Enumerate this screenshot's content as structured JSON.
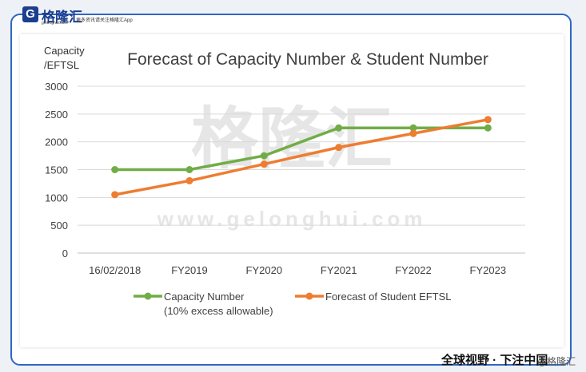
{
  "brand": {
    "logo_letter": "G",
    "name": "格隆汇",
    "domain": "gelonghui.com",
    "slogan": "更多资讯请关注格隆汇App",
    "footer_text": "全球视野 · 下注中国",
    "footer_logo": "@格隆汇",
    "watermark_name": "格隆汇",
    "watermark_url": "www.gelonghui.com"
  },
  "chart_data": {
    "type": "line",
    "title": "Forecast of Capacity Number & Student Number",
    "ylabel_line1": "Capacity",
    "ylabel_line2": "/EFTSL",
    "categories": [
      "16/02/2018",
      "FY2019",
      "FY2020",
      "FY2021",
      "FY2022",
      "FY2023"
    ],
    "ylim": [
      0,
      3000
    ],
    "yticks": [
      0,
      500,
      1000,
      1500,
      2000,
      2500,
      3000
    ],
    "grid": true,
    "legend_position": "bottom",
    "series": [
      {
        "name_line1": "Capacity Number",
        "name_line2": "(10% excess allowable)",
        "color": "#70ad47",
        "values": [
          1500,
          1500,
          1750,
          2250,
          2250,
          2250
        ]
      },
      {
        "name_line1": "Forecast of Student EFTSL",
        "name_line2": "",
        "color": "#ed7d31",
        "values": [
          1050,
          1300,
          1600,
          1900,
          2150,
          2400
        ]
      }
    ]
  }
}
